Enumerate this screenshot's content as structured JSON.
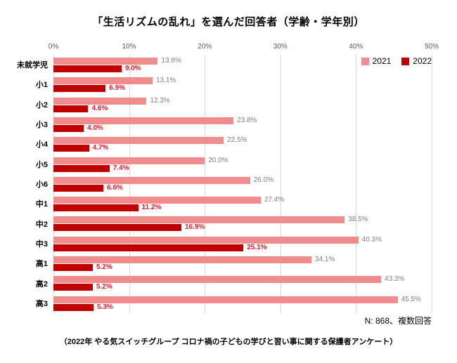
{
  "title": "「生活リズムの乱れ」を選んだ回答者（学齢・学年別）",
  "chart_data": {
    "type": "bar",
    "orientation": "horizontal",
    "title": "「生活リズムの乱れ」を選んだ回答者（学齢・学年別）",
    "categories": [
      "未就学児",
      "小1",
      "小2",
      "小3",
      "小4",
      "小5",
      "小6",
      "中1",
      "中2",
      "中3",
      "高1",
      "高2",
      "高3"
    ],
    "series": [
      {
        "name": "2021",
        "color": "#f08b8e",
        "label_color": "#7f7f7f",
        "values": [
          13.8,
          13.1,
          12.3,
          23.8,
          22.5,
          20.0,
          26.0,
          27.4,
          38.5,
          40.3,
          34.1,
          43.3,
          45.5
        ]
      },
      {
        "name": "2022",
        "color": "#c00000",
        "label_color": "#e8192d",
        "values": [
          9.0,
          6.9,
          4.6,
          4.0,
          4.7,
          7.4,
          6.6,
          11.2,
          16.9,
          25.1,
          5.2,
          5.2,
          5.3
        ]
      }
    ],
    "xlim": [
      0,
      50
    ],
    "x_ticks": [
      "0%",
      "10%",
      "20%",
      "30%",
      "40%",
      "50%"
    ],
    "grid": true,
    "legend_position": "top-right",
    "value_label_format": "one-decimal-percent"
  },
  "note": "N: 868、複数回答",
  "footer": "（2022年 やる気スイッチグループ コロナ禍の子どもの学びと習い事に関する保護者アンケート）"
}
